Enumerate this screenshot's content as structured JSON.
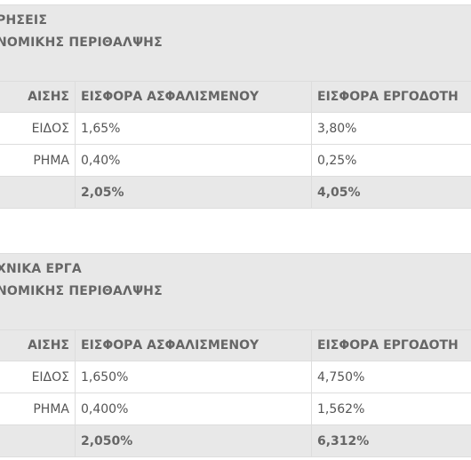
{
  "tables": [
    {
      "title_line1": "ΡΗΣΕΙΣ",
      "title_line2": "ΝΟΜΙΚΗΣ ΠΕΡΙΘΑΛΨΗΣ",
      "columns": [
        "ΑΙΣΗΣ",
        "ΕΙΣΦΟΡΑ ΑΣΦΑΛΙΣΜΕΝΟΥ",
        "ΕΙΣΦΟΡΑ ΕΡΓΟΔΟΤΗ"
      ],
      "rows": [
        {
          "label": "ΕΙΔΟΣ",
          "insured": "1,65%",
          "employer": "3,80%"
        },
        {
          "label": "ΡΗΜΑ",
          "insured": "0,40%",
          "employer": "0,25%"
        }
      ],
      "total": {
        "label": "",
        "insured": "2,05%",
        "employer": "4,05%"
      }
    },
    {
      "title_line1": "ΧΝΙΚΑ ΕΡΓΑ",
      "title_line2": "ΝΟΜΙΚΗΣ ΠΕΡΙΘΑΛΨΗΣ",
      "columns": [
        "ΑΙΣΗΣ",
        "ΕΙΣΦΟΡΑ ΑΣΦΑΛΙΣΜΕΝΟΥ",
        "ΕΙΣΦΟΡΑ ΕΡΓΟΔΟΤΗ"
      ],
      "rows": [
        {
          "label": "ΕΙΔΟΣ",
          "insured": "1,650%",
          "employer": "4,750%"
        },
        {
          "label": "ΡΗΜΑ",
          "insured": "0,400%",
          "employer": "1,562%"
        }
      ],
      "total": {
        "label": "",
        "insured": "2,050%",
        "employer": "6,312%"
      }
    }
  ]
}
